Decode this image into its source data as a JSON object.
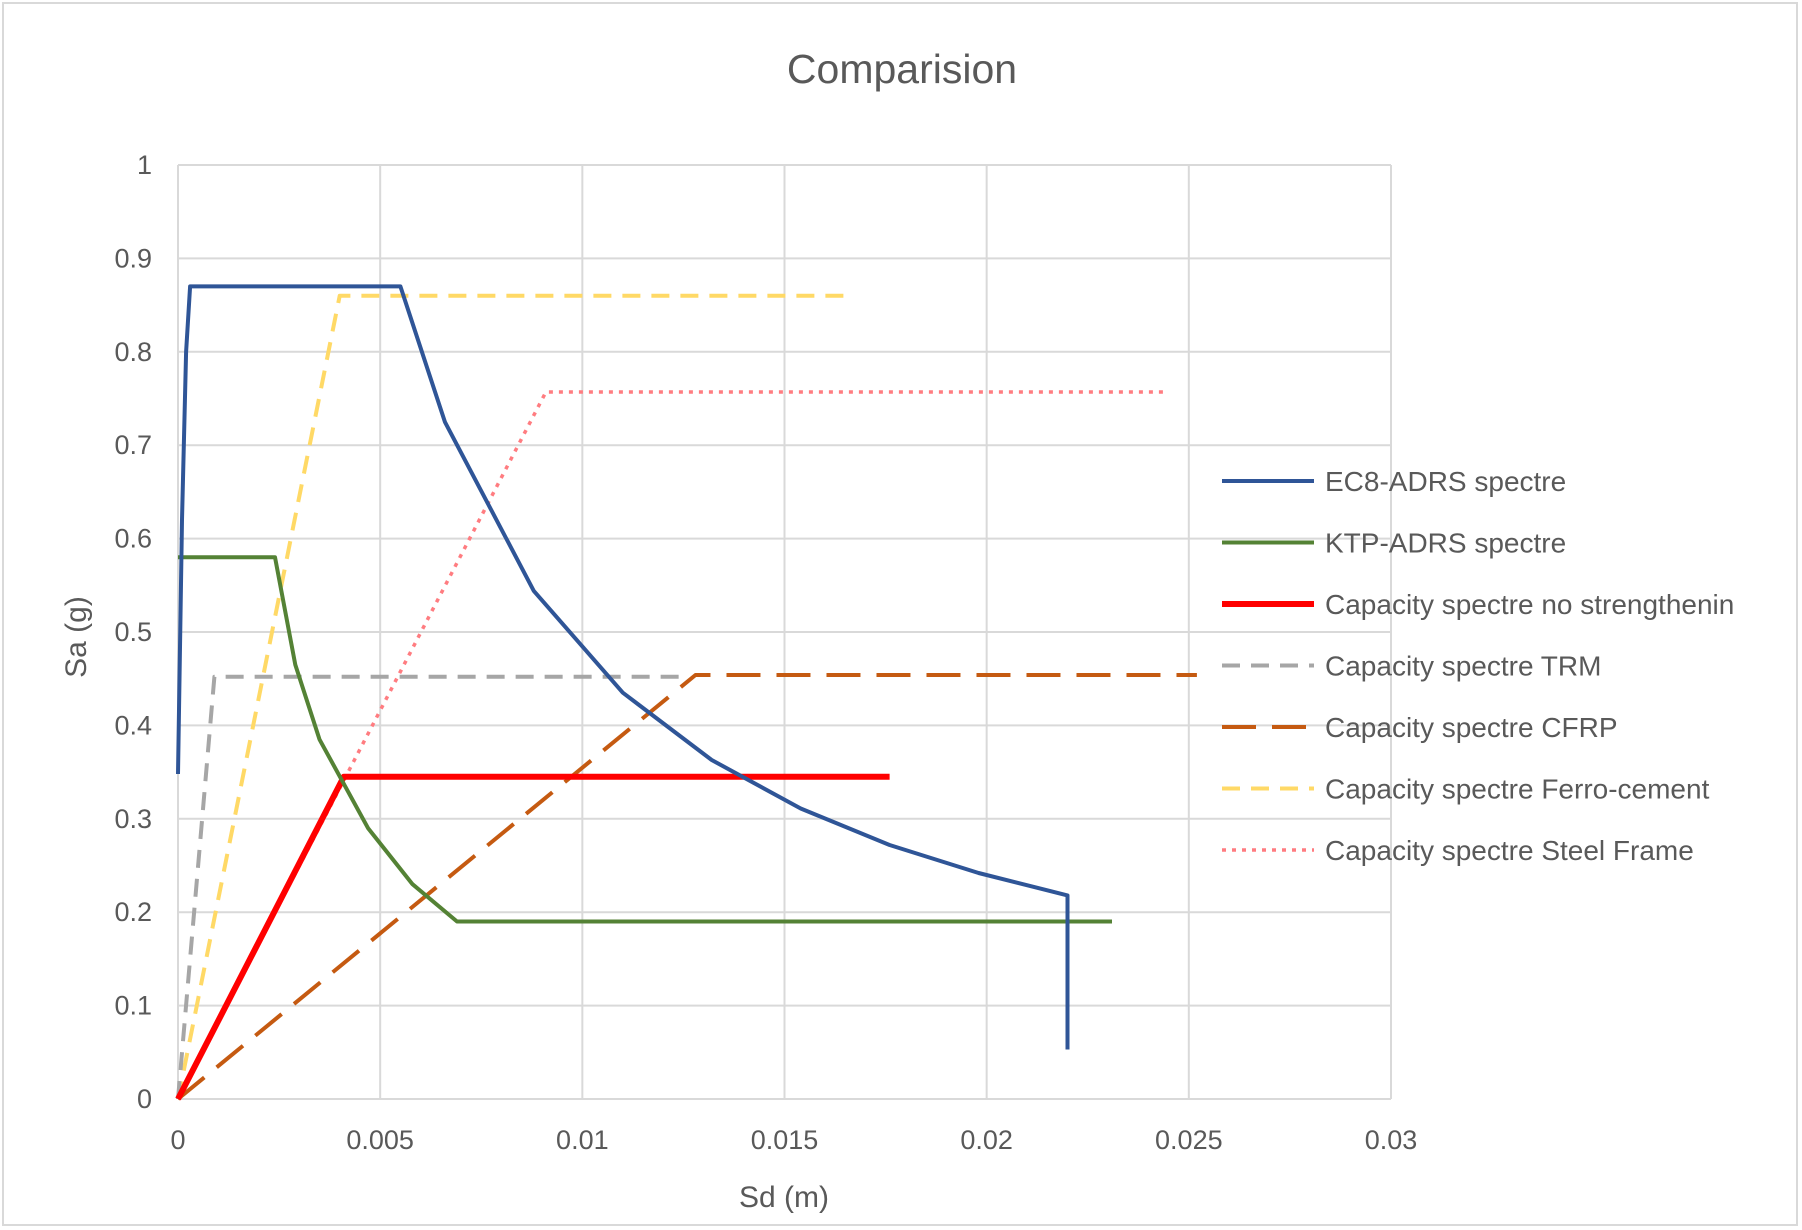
{
  "chart_data": {
    "type": "line",
    "title": "Comparision",
    "xlabel": "Sd (m)",
    "ylabel": "Sa (g)",
    "xlim": [
      0,
      0.03
    ],
    "ylim": [
      0,
      1
    ],
    "xticks": [
      "0",
      "0.005",
      "0.01",
      "0.015",
      "0.02",
      "0.025",
      "0.03"
    ],
    "yticks": [
      "0",
      "0.1",
      "0.2",
      "0.3",
      "0.4",
      "0.5",
      "0.6",
      "0.7",
      "0.8",
      "0.9",
      "1"
    ],
    "grid": true,
    "legend_position": "right",
    "series": [
      {
        "name": "EC8-ADRS spectre",
        "color": "#2f5597",
        "dash": "solid",
        "x": [
          0,
          0.0001,
          0.0002,
          0.0003,
          0.0005,
          0.0055,
          0.0066,
          0.0088,
          0.011,
          0.0132,
          0.0154,
          0.0176,
          0.0198,
          0.022,
          0.022
        ],
        "y": [
          0.348,
          0.62,
          0.8,
          0.87,
          0.87,
          0.87,
          0.725,
          0.544,
          0.435,
          0.363,
          0.311,
          0.272,
          0.242,
          0.218,
          0.053
        ]
      },
      {
        "name": "KTP-ADRS spectre",
        "color": "#548235",
        "dash": "solid",
        "x": [
          0,
          0.0024,
          0.0029,
          0.0035,
          0.0047,
          0.0058,
          0.0069,
          0.0231
        ],
        "y": [
          0.58,
          0.58,
          0.465,
          0.385,
          0.29,
          0.23,
          0.19,
          0.19
        ]
      },
      {
        "name": "Capacity spectre no strengthenin",
        "color": "#ff0000",
        "dash": "solid",
        "x": [
          0,
          0.0041,
          0.0176
        ],
        "y": [
          0,
          0.345,
          0.345
        ]
      },
      {
        "name": "Capacity spectre TRM",
        "color": "#a6a6a6",
        "dash": "dash",
        "x": [
          0,
          0.0009,
          0.0125
        ],
        "y": [
          0,
          0.452,
          0.452
        ]
      },
      {
        "name": "Capacity spectre CFRP",
        "color": "#c55a11",
        "dash": "longdash",
        "x": [
          0,
          0.0128,
          0.0252
        ],
        "y": [
          0,
          0.454,
          0.454
        ]
      },
      {
        "name": "Capacity spectre Ferro-cement",
        "color": "#ffd966",
        "dash": "dash",
        "x": [
          0,
          0.004,
          0.0167
        ],
        "y": [
          0,
          0.86,
          0.86
        ]
      },
      {
        "name": "Capacity spectre Steel Frame",
        "color": "#ff7c80",
        "dash": "dot",
        "x": [
          0,
          0.0091,
          0.0245
        ],
        "y": [
          0,
          0.757,
          0.757
        ]
      }
    ]
  }
}
